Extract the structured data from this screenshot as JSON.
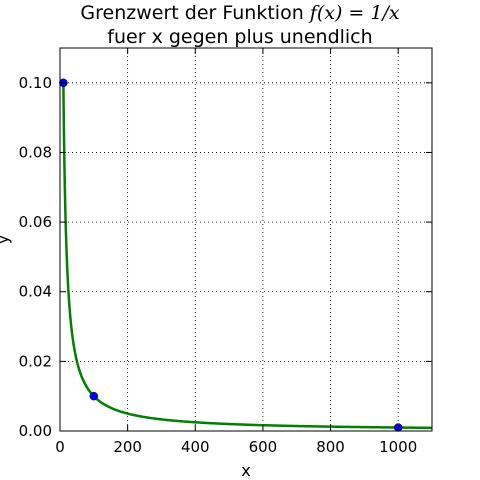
{
  "chart_data": {
    "type": "line",
    "title_prefix": "Grenzwert der Funktion ",
    "title_formula": "f(x) = 1/x",
    "subtitle": "fuer x gegen plus unendlich",
    "xlabel": "x",
    "ylabel": "y",
    "xlim": [
      0,
      1100
    ],
    "ylim": [
      0,
      0.11
    ],
    "xticks": [
      0,
      200,
      400,
      600,
      800,
      1000
    ],
    "xtick_labels": [
      "0",
      "200",
      "400",
      "600",
      "800",
      "1000"
    ],
    "yticks": [
      0.0,
      0.02,
      0.04,
      0.06,
      0.08,
      0.1
    ],
    "ytick_labels": [
      "0.00",
      "0.02",
      "0.04",
      "0.06",
      "0.08",
      "0.10"
    ],
    "grid": true,
    "series": [
      {
        "kind": "function",
        "function": "1/x",
        "x_range": [
          10,
          1100
        ],
        "color": "#008000"
      },
      {
        "kind": "markers",
        "x": [
          10,
          100,
          1000
        ],
        "y": [
          0.1,
          0.01,
          0.001
        ],
        "color": "#0000ff"
      }
    ]
  }
}
